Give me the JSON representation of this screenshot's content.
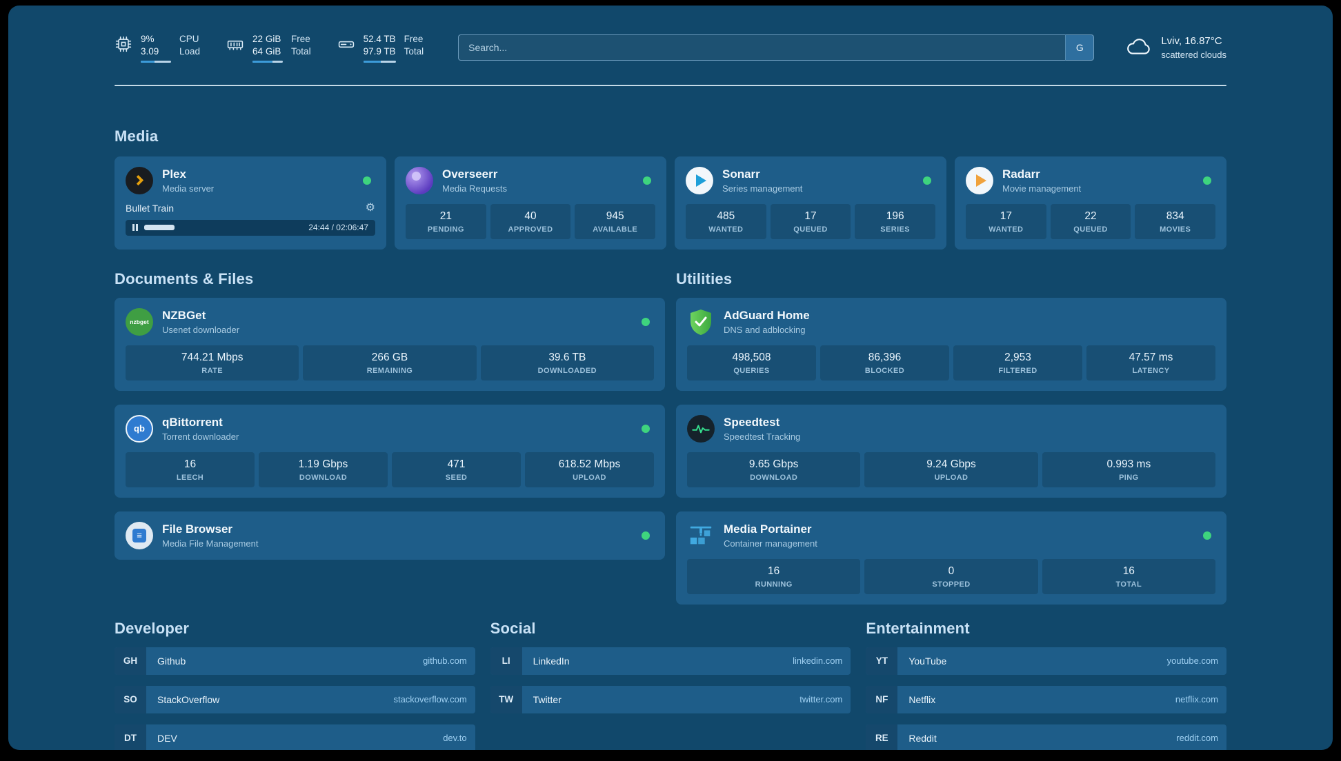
{
  "colors": {
    "page_bg": "#11486b",
    "card_bg": "#1e5d89",
    "status_green": "#3ed47e",
    "accent_blue": "#3c9bd9",
    "divider": "#d9eaf5"
  },
  "system_stats": {
    "cpu": {
      "line1": "9%",
      "line2": "3.09",
      "label1": "CPU",
      "label2": "Load",
      "progress_pct": 45
    },
    "memory": {
      "line1": "22 GiB",
      "line2": "64 GiB",
      "label1": "Free",
      "label2": "Total",
      "progress_pct": 65
    },
    "storage": {
      "line1": "52.4 TB",
      "line2": "97.9 TB",
      "label1": "Free",
      "label2": "Total",
      "progress_pct": 55
    }
  },
  "search": {
    "placeholder": "Search...",
    "engine": "G"
  },
  "weather": {
    "summary": "Lviv, 16.87°C",
    "condition": "scattered clouds"
  },
  "sections": {
    "media": "Media",
    "documents": "Documents & Files",
    "utilities": "Utilities",
    "developer": "Developer",
    "social": "Social",
    "entertainment": "Entertainment"
  },
  "media": {
    "plex": {
      "name": "Plex",
      "subtitle": "Media server",
      "now_playing": "Bullet Train",
      "time": "24:44 / 02:06:47",
      "progress_pct": 19
    },
    "overseerr": {
      "name": "Overseerr",
      "subtitle": "Media Requests",
      "stats": [
        {
          "value": "21",
          "label": "PENDING"
        },
        {
          "value": "40",
          "label": "APPROVED"
        },
        {
          "value": "945",
          "label": "AVAILABLE"
        }
      ]
    },
    "sonarr": {
      "name": "Sonarr",
      "subtitle": "Series management",
      "stats": [
        {
          "value": "485",
          "label": "WANTED"
        },
        {
          "value": "17",
          "label": "QUEUED"
        },
        {
          "value": "196",
          "label": "SERIES"
        }
      ]
    },
    "radarr": {
      "name": "Radarr",
      "subtitle": "Movie management",
      "stats": [
        {
          "value": "17",
          "label": "WANTED"
        },
        {
          "value": "22",
          "label": "QUEUED"
        },
        {
          "value": "834",
          "label": "MOVIES"
        }
      ]
    }
  },
  "documents": {
    "nzbget": {
      "name": "NZBGet",
      "subtitle": "Usenet downloader",
      "stats": [
        {
          "value": "744.21 Mbps",
          "label": "RATE"
        },
        {
          "value": "266 GB",
          "label": "REMAINING"
        },
        {
          "value": "39.6 TB",
          "label": "DOWNLOADED"
        }
      ]
    },
    "qbittorrent": {
      "name": "qBittorrent",
      "subtitle": "Torrent downloader",
      "stats": [
        {
          "value": "16",
          "label": "LEECH"
        },
        {
          "value": "1.19 Gbps",
          "label": "DOWNLOAD"
        },
        {
          "value": "471",
          "label": "SEED"
        },
        {
          "value": "618.52 Mbps",
          "label": "UPLOAD"
        }
      ]
    },
    "filebrowser": {
      "name": "File Browser",
      "subtitle": "Media File Management"
    }
  },
  "utilities": {
    "adguard": {
      "name": "AdGuard Home",
      "subtitle": "DNS and adblocking",
      "stats": [
        {
          "value": "498,508",
          "label": "QUERIES"
        },
        {
          "value": "86,396",
          "label": "BLOCKED"
        },
        {
          "value": "2,953",
          "label": "FILTERED"
        },
        {
          "value": "47.57 ms",
          "label": "LATENCY"
        }
      ]
    },
    "speedtest": {
      "name": "Speedtest",
      "subtitle": "Speedtest Tracking",
      "stats": [
        {
          "value": "9.65 Gbps",
          "label": "DOWNLOAD"
        },
        {
          "value": "9.24 Gbps",
          "label": "UPLOAD"
        },
        {
          "value": "0.993 ms",
          "label": "PING"
        }
      ]
    },
    "portainer": {
      "name": "Media Portainer",
      "subtitle": "Container management",
      "stats": [
        {
          "value": "16",
          "label": "RUNNING"
        },
        {
          "value": "0",
          "label": "STOPPED"
        },
        {
          "value": "16",
          "label": "TOTAL"
        }
      ]
    }
  },
  "links": {
    "developer": [
      {
        "abbr": "GH",
        "name": "Github",
        "domain": "github.com"
      },
      {
        "abbr": "SO",
        "name": "StackOverflow",
        "domain": "stackoverflow.com"
      },
      {
        "abbr": "DT",
        "name": "DEV",
        "domain": "dev.to"
      }
    ],
    "social": [
      {
        "abbr": "LI",
        "name": "LinkedIn",
        "domain": "linkedin.com"
      },
      {
        "abbr": "TW",
        "name": "Twitter",
        "domain": "twitter.com"
      }
    ],
    "entertainment": [
      {
        "abbr": "YT",
        "name": "YouTube",
        "domain": "youtube.com"
      },
      {
        "abbr": "NF",
        "name": "Netflix",
        "domain": "netflix.com"
      },
      {
        "abbr": "RE",
        "name": "Reddit",
        "domain": "reddit.com"
      }
    ]
  },
  "icons": {
    "nzbget_text": "nzbget",
    "qbittorrent_text": "qb",
    "filebrowser_glyph": "≡",
    "gear_glyph": "⚙"
  }
}
